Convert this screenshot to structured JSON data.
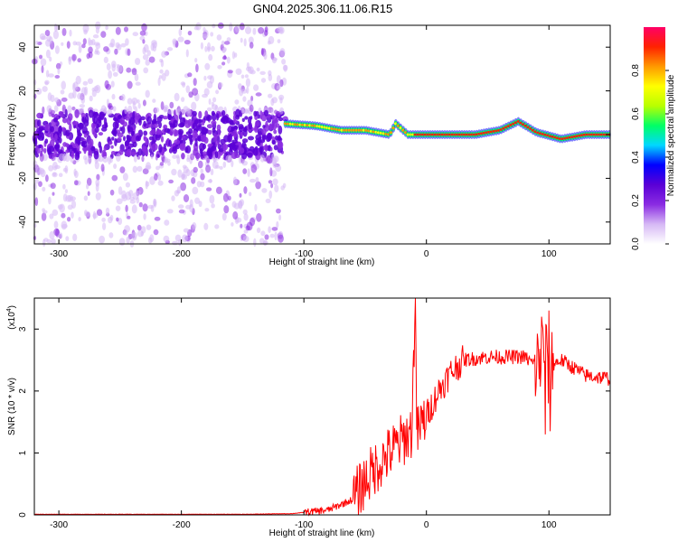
{
  "title": "GN04.2025.306.11.06.R15",
  "chart_data": [
    {
      "type": "heatmap",
      "xlabel": "Height of straight line (km)",
      "ylabel": "Frequency (Hz)",
      "xlim": [
        -320,
        150
      ],
      "ylim": [
        -50,
        50
      ],
      "xticks": [
        -300,
        -200,
        -100,
        0,
        100
      ],
      "yticks": [
        -40,
        -20,
        0,
        20,
        40
      ],
      "colorbar": {
        "label": "Normalized spectral amplitude",
        "range": [
          0,
          1
        ],
        "ticks": [
          "0.0",
          "0.2",
          "0.4",
          "0.6",
          "0.8"
        ],
        "colors": [
          "#ffffff",
          "#d6b8f5",
          "#8a2be2",
          "#5a00d6",
          "#0000ff",
          "#00d8ff",
          "#00ff66",
          "#b8ff00",
          "#ffff00",
          "#ff9900",
          "#ff2200",
          "#ff0066"
        ]
      },
      "features": {
        "noisy_region_x": [
          -320,
          -115
        ],
        "main_line_x": [
          -115,
          150
        ],
        "main_line_freq": [
          [
            -115,
            5
          ],
          [
            -90,
            4
          ],
          [
            -70,
            2
          ],
          [
            -50,
            2
          ],
          [
            -30,
            0
          ],
          [
            -25,
            5
          ],
          [
            -15,
            0
          ],
          [
            0,
            0
          ],
          [
            40,
            0
          ],
          [
            60,
            2
          ],
          [
            75,
            6
          ],
          [
            90,
            1
          ],
          [
            110,
            -2
          ],
          [
            130,
            0
          ],
          [
            150,
            0
          ]
        ]
      }
    },
    {
      "type": "line",
      "xlabel": "Height of straight line (km)",
      "ylabel": "SNR (10 * v/v)",
      "scale_label": "(x10",
      "scale_exp": "4",
      "xlim": [
        -320,
        150
      ],
      "ylim": [
        0,
        3.5
      ],
      "xticks": [
        -300,
        -200,
        -100,
        0,
        100
      ],
      "yticks": [
        0,
        1,
        2,
        3
      ],
      "series": [
        {
          "color": "#ff0000",
          "trend": [
            [
              -320,
              0.01
            ],
            [
              -150,
              0.01
            ],
            [
              -110,
              0.02
            ],
            [
              -80,
              0.08
            ],
            [
              -60,
              0.25
            ],
            [
              -50,
              0.55
            ],
            [
              -40,
              0.8
            ],
            [
              -30,
              1.0
            ],
            [
              -20,
              1.2
            ],
            [
              -12,
              1.35
            ],
            [
              -9,
              3.5
            ],
            [
              -8,
              1.3
            ],
            [
              0,
              1.6
            ],
            [
              10,
              2.0
            ],
            [
              20,
              2.3
            ],
            [
              30,
              2.5
            ],
            [
              50,
              2.55
            ],
            [
              80,
              2.55
            ],
            [
              90,
              2.4
            ],
            [
              95,
              2.6
            ],
            [
              100,
              2.4
            ],
            [
              110,
              2.5
            ],
            [
              130,
              2.25
            ],
            [
              150,
              2.2
            ]
          ],
          "spikes": [
            [
              -9,
              3.5
            ],
            [
              94,
              3.2
            ],
            [
              97,
              1.3
            ],
            [
              100,
              3.3
            ],
            [
              101,
              1.35
            ]
          ]
        }
      ]
    }
  ]
}
